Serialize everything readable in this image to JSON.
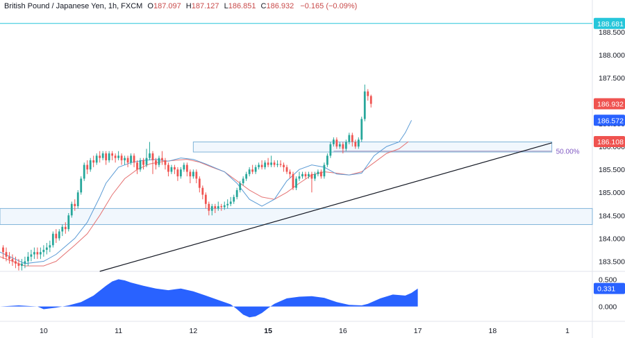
{
  "header": {
    "symbol": "British Pound / Japanese Yen, 1h, FXCM",
    "o_label": "O",
    "o_value": "187.097",
    "h_label": "H",
    "h_value": "187.127",
    "l_label": "L",
    "l_value": "186.851",
    "c_label": "C",
    "c_value": "186.932",
    "change": "−0.165 (−0.09%)"
  },
  "price_axis": {
    "ticks": [
      "188.500",
      "188.000",
      "187.500",
      "187.000",
      "186.500",
      "186.000",
      "185.500",
      "185.000",
      "184.500",
      "184.000",
      "183.500"
    ],
    "tick_values": [
      188.5,
      188.0,
      187.5,
      187.0,
      186.5,
      186.0,
      185.5,
      185.0,
      184.5,
      184.0,
      183.5
    ],
    "ylim": [
      183.28,
      188.92
    ]
  },
  "price_labels": [
    {
      "text": "188.681",
      "value": 188.681,
      "color": "#26c6da"
    },
    {
      "text": "186.932",
      "value": 186.932,
      "color": "#ef5350"
    },
    {
      "text": "186.572",
      "value": 186.572,
      "color": "#2962ff"
    },
    {
      "text": "186.108",
      "value": 186.108,
      "color": "#ef5350"
    }
  ],
  "fib_label": "50.00%",
  "osc_axis": {
    "ticks": [
      "0.500",
      "0.000"
    ],
    "tick_values": [
      0.5,
      0.0
    ],
    "current": "0.331",
    "ylim": [
      -0.26,
      0.62
    ]
  },
  "time_axis": {
    "labels": [
      "10",
      "11",
      "12",
      "15",
      "16",
      "17",
      "18",
      "1"
    ],
    "positions": [
      0,
      24,
      48,
      72,
      96,
      120,
      144,
      168
    ],
    "bold": [
      false,
      false,
      false,
      true,
      false,
      false,
      false,
      false
    ]
  },
  "chart_data": {
    "type": "candlestick",
    "x_start": -14,
    "x_end": 176,
    "colors": {
      "up": "#26a69a",
      "down": "#ef5350",
      "ma_fast": "#5b9bd5",
      "ma_slow": "#e57373",
      "trend": "#131722",
      "zone_edge": "#7fb3d8",
      "zone_fill": "#e8f1fb",
      "osc": "#2962ff",
      "fib": "#b0a3c9"
    },
    "candles": [
      [
        183.8,
        183.7,
        183.85,
        183.55
      ],
      [
        183.7,
        183.6,
        183.8,
        183.5
      ],
      [
        183.6,
        183.55,
        183.7,
        183.45
      ],
      [
        183.55,
        183.5,
        183.65,
        183.4
      ],
      [
        183.5,
        183.45,
        183.6,
        183.35
      ],
      [
        183.45,
        183.4,
        183.55,
        183.3
      ],
      [
        183.4,
        183.45,
        183.55,
        183.3
      ],
      [
        183.45,
        183.5,
        183.6,
        183.35
      ],
      [
        183.5,
        183.6,
        183.7,
        183.4
      ],
      [
        183.6,
        183.65,
        183.75,
        183.5
      ],
      [
        183.65,
        183.7,
        183.8,
        183.55
      ],
      [
        183.7,
        183.65,
        183.8,
        183.55
      ],
      [
        183.65,
        183.7,
        183.8,
        183.55
      ],
      [
        183.7,
        183.75,
        183.85,
        183.6
      ],
      [
        183.75,
        183.8,
        183.9,
        183.65
      ],
      [
        183.8,
        183.85,
        183.95,
        183.7
      ],
      [
        183.85,
        184.1,
        184.15,
        183.8
      ],
      [
        184.1,
        184.0,
        184.2,
        183.9
      ],
      [
        184.0,
        184.15,
        184.2,
        183.95
      ],
      [
        184.15,
        184.25,
        184.3,
        184.05
      ],
      [
        184.25,
        184.2,
        184.35,
        184.1
      ],
      [
        184.2,
        184.5,
        184.55,
        184.15
      ],
      [
        184.5,
        184.75,
        184.8,
        184.45
      ],
      [
        184.75,
        184.7,
        184.85,
        184.6
      ],
      [
        184.7,
        185.0,
        185.05,
        184.65
      ],
      [
        185.0,
        185.3,
        185.35,
        184.95
      ],
      [
        185.3,
        185.6,
        185.65,
        185.25
      ],
      [
        185.6,
        185.5,
        185.7,
        185.4
      ],
      [
        185.5,
        185.7,
        185.75,
        185.45
      ],
      [
        185.7,
        185.65,
        185.8,
        185.55
      ],
      [
        185.65,
        185.8,
        185.85,
        185.6
      ],
      [
        185.8,
        185.75,
        185.9,
        185.65
      ],
      [
        185.75,
        185.85,
        185.9,
        185.7
      ],
      [
        185.85,
        185.7,
        185.9,
        185.6
      ],
      [
        185.7,
        185.85,
        185.9,
        185.65
      ],
      [
        185.85,
        185.8,
        185.9,
        185.7
      ],
      [
        185.8,
        185.75,
        185.85,
        185.65
      ],
      [
        185.75,
        185.8,
        185.9,
        185.7
      ],
      [
        185.8,
        185.7,
        185.85,
        185.6
      ],
      [
        185.7,
        185.75,
        185.8,
        185.6
      ],
      [
        185.75,
        185.65,
        185.8,
        185.55
      ],
      [
        185.65,
        185.8,
        185.85,
        185.6
      ],
      [
        185.8,
        185.65,
        185.85,
        185.55
      ],
      [
        185.65,
        185.5,
        185.7,
        185.4
      ],
      [
        185.5,
        185.7,
        185.75,
        185.45
      ],
      [
        185.7,
        185.6,
        185.75,
        185.5
      ],
      [
        185.6,
        185.75,
        185.95,
        185.55
      ],
      [
        185.75,
        185.85,
        186.1,
        185.7
      ],
      [
        185.85,
        185.7,
        185.9,
        185.4
      ],
      [
        185.7,
        185.6,
        185.75,
        185.5
      ],
      [
        185.6,
        185.75,
        185.8,
        185.55
      ],
      [
        185.75,
        185.7,
        185.9,
        185.6
      ],
      [
        185.7,
        185.6,
        185.75,
        185.5
      ],
      [
        185.6,
        185.45,
        185.65,
        185.35
      ],
      [
        185.45,
        185.55,
        185.6,
        185.4
      ],
      [
        185.55,
        185.5,
        185.6,
        185.4
      ],
      [
        185.5,
        185.35,
        185.55,
        185.25
      ],
      [
        185.35,
        185.5,
        185.55,
        185.3
      ],
      [
        185.5,
        185.6,
        185.65,
        185.45
      ],
      [
        185.6,
        185.45,
        185.65,
        185.35
      ],
      [
        185.45,
        185.35,
        185.5,
        185.2
      ],
      [
        185.35,
        185.45,
        185.5,
        185.3
      ],
      [
        185.45,
        185.3,
        185.5,
        185.2
      ],
      [
        185.3,
        185.1,
        185.35,
        185.0
      ],
      [
        185.1,
        184.95,
        185.15,
        184.85
      ],
      [
        184.95,
        184.75,
        185.0,
        184.65
      ],
      [
        184.75,
        184.6,
        184.8,
        184.5
      ],
      [
        184.6,
        184.7,
        184.75,
        184.5
      ],
      [
        184.7,
        184.65,
        184.75,
        184.55
      ],
      [
        184.65,
        184.7,
        184.8,
        184.6
      ],
      [
        184.7,
        184.68,
        184.75,
        184.6
      ],
      [
        184.68,
        184.72,
        184.8,
        184.62
      ],
      [
        184.72,
        184.75,
        184.85,
        184.65
      ],
      [
        184.75,
        184.8,
        184.9,
        184.7
      ],
      [
        184.8,
        184.9,
        184.95,
        184.75
      ],
      [
        184.9,
        185.05,
        185.1,
        184.85
      ],
      [
        185.05,
        185.2,
        185.25,
        185.0
      ],
      [
        185.2,
        185.3,
        185.35,
        185.15
      ],
      [
        185.3,
        185.4,
        185.45,
        185.25
      ],
      [
        185.4,
        185.5,
        185.55,
        185.35
      ],
      [
        185.5,
        185.45,
        185.6,
        185.4
      ],
      [
        185.45,
        185.55,
        185.6,
        185.4
      ],
      [
        185.55,
        185.6,
        185.65,
        185.5
      ],
      [
        185.6,
        185.55,
        185.7,
        185.5
      ],
      [
        185.55,
        185.65,
        185.7,
        185.5
      ],
      [
        185.65,
        185.6,
        185.75,
        185.55
      ],
      [
        185.6,
        185.65,
        185.8,
        185.55
      ],
      [
        185.65,
        185.6,
        185.7,
        185.55
      ],
      [
        185.6,
        185.62,
        185.7,
        185.55
      ],
      [
        185.62,
        185.6,
        185.7,
        185.55
      ],
      [
        185.6,
        185.55,
        185.65,
        185.45
      ],
      [
        185.55,
        185.45,
        185.6,
        185.4
      ],
      [
        185.45,
        185.4,
        185.5,
        185.3
      ],
      [
        185.4,
        185.1,
        185.45,
        185.05
      ],
      [
        185.1,
        185.3,
        185.35,
        185.05
      ],
      [
        185.3,
        185.35,
        185.45,
        185.25
      ],
      [
        185.35,
        185.4,
        185.45,
        185.3
      ],
      [
        185.4,
        185.35,
        185.45,
        185.3
      ],
      [
        185.35,
        185.4,
        185.45,
        185.3
      ],
      [
        185.4,
        185.3,
        185.45,
        185.0
      ],
      [
        185.3,
        185.4,
        185.45,
        185.25
      ],
      [
        185.4,
        185.45,
        185.5,
        185.35
      ],
      [
        185.45,
        185.35,
        185.5,
        185.3
      ],
      [
        185.35,
        185.6,
        185.65,
        185.3
      ],
      [
        185.6,
        185.8,
        185.85,
        185.55
      ],
      [
        185.8,
        186.05,
        186.1,
        185.75
      ],
      [
        186.05,
        186.15,
        186.2,
        186.0
      ],
      [
        186.15,
        186.0,
        186.2,
        185.95
      ],
      [
        186.0,
        186.05,
        186.1,
        185.95
      ],
      [
        186.05,
        185.95,
        186.1,
        185.85
      ],
      [
        185.95,
        186.1,
        186.15,
        185.9
      ],
      [
        186.1,
        186.25,
        186.3,
        186.05
      ],
      [
        186.25,
        186.1,
        186.3,
        186.0
      ],
      [
        186.1,
        186.0,
        186.15,
        185.95
      ],
      [
        186.0,
        186.15,
        186.2,
        185.95
      ],
      [
        186.15,
        186.6,
        186.65,
        186.1
      ],
      [
        186.6,
        187.2,
        187.35,
        186.55
      ],
      [
        187.2,
        187.1,
        187.25,
        187.0
      ],
      [
        187.1,
        186.93,
        187.13,
        186.85
      ]
    ],
    "ma_fast": [
      [
        -14,
        183.7
      ],
      [
        -6,
        183.45
      ],
      [
        0,
        183.5
      ],
      [
        4,
        183.65
      ],
      [
        10,
        184.0
      ],
      [
        14,
        184.35
      ],
      [
        18,
        184.9
      ],
      [
        20,
        185.2
      ],
      [
        24,
        185.55
      ],
      [
        28,
        185.65
      ],
      [
        32,
        185.7
      ],
      [
        36,
        185.72
      ],
      [
        40,
        185.68
      ],
      [
        44,
        185.75
      ],
      [
        48,
        185.72
      ],
      [
        52,
        185.62
      ],
      [
        58,
        185.45
      ],
      [
        62,
        185.2
      ],
      [
        66,
        184.85
      ],
      [
        70,
        184.7
      ],
      [
        74,
        184.85
      ],
      [
        78,
        185.25
      ],
      [
        82,
        185.5
      ],
      [
        86,
        185.6
      ],
      [
        90,
        185.55
      ],
      [
        94,
        185.4
      ],
      [
        98,
        185.38
      ],
      [
        102,
        185.42
      ],
      [
        106,
        185.8
      ],
      [
        110,
        186.0
      ],
      [
        114,
        186.1
      ],
      [
        116,
        186.3
      ],
      [
        118,
        186.572
      ]
    ],
    "ma_slow": [
      [
        -14,
        183.6
      ],
      [
        -6,
        183.4
      ],
      [
        0,
        183.4
      ],
      [
        4,
        183.5
      ],
      [
        10,
        183.85
      ],
      [
        14,
        184.1
      ],
      [
        18,
        184.5
      ],
      [
        22,
        184.95
      ],
      [
        26,
        185.3
      ],
      [
        30,
        185.5
      ],
      [
        34,
        185.62
      ],
      [
        38,
        185.67
      ],
      [
        42,
        185.7
      ],
      [
        46,
        185.72
      ],
      [
        50,
        185.66
      ],
      [
        54,
        185.55
      ],
      [
        58,
        185.45
      ],
      [
        62,
        185.25
      ],
      [
        66,
        185.05
      ],
      [
        70,
        184.9
      ],
      [
        74,
        184.85
      ],
      [
        78,
        185.0
      ],
      [
        82,
        185.2
      ],
      [
        86,
        185.38
      ],
      [
        90,
        185.45
      ],
      [
        94,
        185.42
      ],
      [
        98,
        185.38
      ],
      [
        102,
        185.45
      ],
      [
        106,
        185.65
      ],
      [
        110,
        185.85
      ],
      [
        114,
        185.95
      ],
      [
        117,
        186.108
      ]
    ],
    "trendline": {
      "x1": 18,
      "y1": 183.28,
      "x2": 163,
      "y2": 186.08
    },
    "zones": [
      {
        "x1": 48,
        "x2": 163,
        "top": 186.1,
        "bottom": 185.88,
        "fib": false
      },
      {
        "x1": -14,
        "x2": 176,
        "top": 184.65,
        "bottom": 184.3,
        "fib": false
      }
    ],
    "fib_line": {
      "x1": 93,
      "x2": 163,
      "y": 185.9
    },
    "oscillator": [
      [
        -14,
        0.0
      ],
      [
        -8,
        0.02
      ],
      [
        -2,
        0.0
      ],
      [
        0,
        -0.05
      ],
      [
        4,
        -0.02
      ],
      [
        8,
        0.02
      ],
      [
        12,
        0.08
      ],
      [
        16,
        0.2
      ],
      [
        20,
        0.38
      ],
      [
        22,
        0.46
      ],
      [
        24,
        0.5
      ],
      [
        26,
        0.48
      ],
      [
        28,
        0.44
      ],
      [
        32,
        0.38
      ],
      [
        36,
        0.33
      ],
      [
        40,
        0.3
      ],
      [
        44,
        0.33
      ],
      [
        48,
        0.28
      ],
      [
        52,
        0.2
      ],
      [
        56,
        0.12
      ],
      [
        60,
        0.04
      ],
      [
        62,
        -0.05
      ],
      [
        64,
        -0.15
      ],
      [
        66,
        -0.2
      ],
      [
        68,
        -0.18
      ],
      [
        70,
        -0.12
      ],
      [
        72,
        -0.03
      ],
      [
        74,
        0.05
      ],
      [
        78,
        0.15
      ],
      [
        82,
        0.18
      ],
      [
        86,
        0.19
      ],
      [
        90,
        0.16
      ],
      [
        94,
        0.08
      ],
      [
        98,
        0.03
      ],
      [
        102,
        0.02
      ],
      [
        104,
        0.05
      ],
      [
        108,
        0.15
      ],
      [
        112,
        0.22
      ],
      [
        116,
        0.2
      ],
      [
        118,
        0.25
      ],
      [
        120,
        0.331
      ]
    ]
  }
}
